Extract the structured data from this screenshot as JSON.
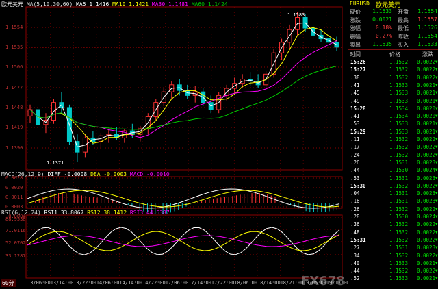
{
  "main": {
    "title": "欧元美元",
    "ma_header": {
      "label": "MA(5,10,30,60)",
      "ma5": "MA5 1.1416",
      "ma10": "MA10 1.1421",
      "ma30": "MA30 1.1481",
      "ma60": "MA60 1.1424"
    },
    "price_yaxis": [
      "1.1583",
      "1.1554",
      "1.1535",
      "1.1506",
      "1.1477",
      "1.1448",
      "1.1419",
      "1.1390"
    ],
    "high_label": "1.1583",
    "low_label": "1.1371"
  },
  "macd": {
    "header": {
      "label": "MACD(26,12,9)",
      "diff": "DIFF -0.0008",
      "dea": "DEA -0.0003",
      "macd": "MACD -0.0010"
    },
    "yaxis": [
      "0.0028",
      "0.0020",
      "0.0011",
      "0.0003",
      "-0.0004"
    ]
  },
  "rsi": {
    "header": {
      "label": "RSI(6,12,24)",
      "rsi1": "RSI1 33.8067",
      "rsi2": "RSI2 38.1412",
      "rsi3": "RSI3 44.6387"
    },
    "yaxis": [
      "88.9538",
      "71.0116",
      "52.0702",
      "33.1287"
    ]
  },
  "xaxis": [
    "13/06:00",
    "13/14:00",
    "13/22:00",
    "14/06:00",
    "14/14:00",
    "14/22:00",
    "17/06:00",
    "17/14:00",
    "17/22:00",
    "18/06:00",
    "18/14:00",
    "18/21:00",
    "19/05:00",
    "19/13:00"
  ],
  "period": "60分",
  "quote": {
    "symbol": "EURUSD",
    "name": "欧元美元",
    "fields": [
      {
        "l": "现价",
        "v": "1.1533",
        "l2": "开盘",
        "v2": "1.1554"
      },
      {
        "l": "涨跌",
        "v": "0.0021",
        "l2": "最高",
        "v2": "1.1557"
      },
      {
        "l": "涨幅",
        "v": "0.18%",
        "l2": "最低",
        "v2": "1.1526"
      },
      {
        "l": "震幅",
        "v": "0.27%",
        "l2": "昨收",
        "v2": "1.1554"
      },
      {
        "l": "卖出",
        "v": "1.1535",
        "l2": "买入",
        "v2": "1.1533"
      }
    ],
    "tick_headers": {
      "time": "时间",
      "price": "价格",
      "chg": "涨跌"
    },
    "ticks": [
      {
        "t": "15:26",
        "p": "1.1532",
        "c": "0.0022"
      },
      {
        "t": "15:27",
        "p": "1.1532",
        "c": "0.0022"
      },
      {
        "t": ".38",
        "p": "1.1532",
        "c": "0.0022"
      },
      {
        "t": ".41",
        "p": "1.1533",
        "c": "0.0021"
      },
      {
        "t": ".45",
        "p": "1.1533",
        "c": "0.0021"
      },
      {
        "t": ".49",
        "p": "1.1533",
        "c": "0.0021"
      },
      {
        "t": "15:28",
        "p": "1.1534",
        "c": "0.0020"
      },
      {
        "t": ".41",
        "p": "1.1534",
        "c": "0.0020"
      },
      {
        "t": ".53",
        "p": "1.1533",
        "c": "0.0021"
      },
      {
        "t": "15:29",
        "p": "1.1533",
        "c": "0.0021"
      },
      {
        "t": ".11",
        "p": "1.1532",
        "c": "0.0022"
      },
      {
        "t": ".17",
        "p": "1.1532",
        "c": "0.0022"
      },
      {
        "t": ".24",
        "p": "1.1532",
        "c": "0.0022"
      },
      {
        "t": ".26",
        "p": "1.1531",
        "c": "0.0023"
      },
      {
        "t": ".44",
        "p": "1.1530",
        "c": "0.0024"
      },
      {
        "t": ".53",
        "p": "1.1531",
        "c": "0.0023"
      },
      {
        "t": "15:30",
        "p": "1.1532",
        "c": "0.0022"
      },
      {
        "t": ".04",
        "p": "1.1531",
        "c": "0.0023"
      },
      {
        "t": ".16",
        "p": "1.1531",
        "c": "0.0023"
      },
      {
        "t": ".26",
        "p": "1.1532",
        "c": "0.0022"
      },
      {
        "t": ".28",
        "p": "1.1530",
        "c": "0.0024"
      },
      {
        "t": ".36",
        "p": "1.1532",
        "c": "0.0022"
      },
      {
        "t": ".48",
        "p": "1.1532",
        "c": "0.0022"
      },
      {
        "t": "15:31",
        "p": "1.1532",
        "c": "0.0022"
      },
      {
        "t": ".27",
        "p": "1.1531",
        "c": "0.0023"
      },
      {
        "t": ".34",
        "p": "1.1532",
        "c": "0.0022"
      },
      {
        "t": ".40",
        "p": "1.1533",
        "c": "0.0021"
      },
      {
        "t": ".44",
        "p": "1.1532",
        "c": "0.0022"
      },
      {
        "t": ".52",
        "p": "1.1533",
        "c": "0.0021"
      }
    ]
  },
  "watermark": "FX678 汇通网",
  "colors": {
    "up": "#ff3333",
    "down": "#00c8c8",
    "ma5": "#ffffff",
    "ma10": "#ffff00",
    "ma30": "#ff00ff",
    "ma60": "#00cc00",
    "axis": "#8b0000",
    "price": "#ffff00",
    "quote_up": "#ff4040"
  },
  "chart_data": {
    "type": "candlestick",
    "candles_approx": [
      [
        1.1436,
        1.1452,
        1.1426,
        1.1445
      ],
      [
        1.1445,
        1.145,
        1.142,
        1.1424
      ],
      [
        1.1424,
        1.144,
        1.1412,
        1.143
      ],
      [
        1.143,
        1.146,
        1.1425,
        1.1455
      ],
      [
        1.1455,
        1.147,
        1.144,
        1.1448
      ],
      [
        1.1448,
        1.1452,
        1.1395,
        1.14
      ],
      [
        1.14,
        1.141,
        1.1371,
        1.1385
      ],
      [
        1.1385,
        1.141,
        1.1378,
        1.1405
      ],
      [
        1.1405,
        1.1415,
        1.1395,
        1.14
      ],
      [
        1.14,
        1.1412,
        1.1392,
        1.1408
      ],
      [
        1.1408,
        1.1418,
        1.1398,
        1.141
      ],
      [
        1.141,
        1.142,
        1.1402,
        1.1405
      ],
      [
        1.1405,
        1.1418,
        1.1398,
        1.1415
      ],
      [
        1.1415,
        1.1425,
        1.1405,
        1.141
      ],
      [
        1.141,
        1.1422,
        1.14,
        1.1418
      ],
      [
        1.1418,
        1.144,
        1.141,
        1.1435
      ],
      [
        1.1435,
        1.146,
        1.143,
        1.1455
      ],
      [
        1.1455,
        1.1475,
        1.145,
        1.147
      ],
      [
        1.147,
        1.1485,
        1.146,
        1.148
      ],
      [
        1.148,
        1.1488,
        1.1465,
        1.1472
      ],
      [
        1.1472,
        1.148,
        1.146,
        1.1465
      ],
      [
        1.1465,
        1.1478,
        1.1455,
        1.147
      ],
      [
        1.147,
        1.1475,
        1.145,
        1.1455
      ],
      [
        1.1455,
        1.1465,
        1.144,
        1.1445
      ],
      [
        1.1445,
        1.147,
        1.144,
        1.1465
      ],
      [
        1.1465,
        1.148,
        1.1458,
        1.1475
      ],
      [
        1.1475,
        1.149,
        1.1468,
        1.1482
      ],
      [
        1.1482,
        1.1495,
        1.1475,
        1.1488
      ],
      [
        1.1488,
        1.1498,
        1.1478,
        1.1485
      ],
      [
        1.1485,
        1.1495,
        1.1475,
        1.148
      ],
      [
        1.148,
        1.15,
        1.1475,
        1.1495
      ],
      [
        1.1495,
        1.153,
        1.149,
        1.1525
      ],
      [
        1.1525,
        1.1545,
        1.1515,
        1.154
      ],
      [
        1.154,
        1.1565,
        1.153,
        1.1558
      ],
      [
        1.1558,
        1.1583,
        1.155,
        1.1575
      ],
      [
        1.1575,
        1.158,
        1.1555,
        1.156
      ],
      [
        1.156,
        1.1565,
        1.1545,
        1.155
      ],
      [
        1.155,
        1.1558,
        1.154,
        1.1545
      ],
      [
        1.1545,
        1.1552,
        1.1535,
        1.154
      ],
      [
        1.154,
        1.1548,
        1.1528,
        1.1533
      ]
    ]
  }
}
